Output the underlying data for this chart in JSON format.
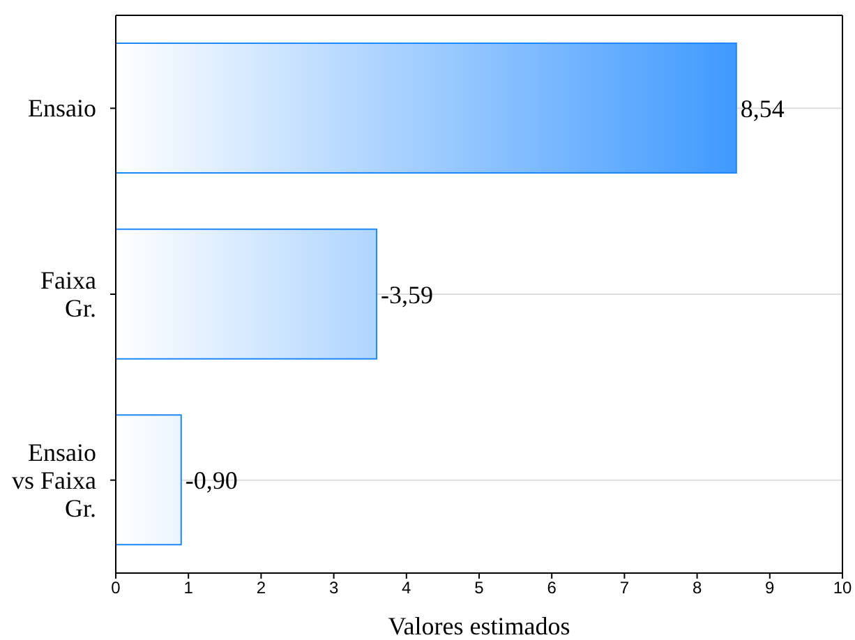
{
  "chart_data": {
    "type": "bar",
    "orientation": "horizontal",
    "xlabel": "Valores estimados",
    "categories": [
      "Ensaio",
      "Faixa Gr.",
      "Ensaio vs Faixa Gr."
    ],
    "values": [
      8.54,
      3.59,
      0.9
    ],
    "color": "#1e88ff",
    "annotations": [
      {
        "text": "8,54",
        "x": 8.54,
        "y": "Ensaio"
      },
      {
        "text": "-3,59",
        "x": 3.59,
        "y": "Faixa Gr."
      },
      {
        "text": "-0,90",
        "x": 0.9,
        "y": "Ensaio vs Faixa Gr."
      }
    ],
    "xlim": [
      0,
      10
    ],
    "xticks": [
      0,
      1,
      2,
      3,
      4,
      5,
      6,
      7,
      8,
      9,
      10
    ],
    "grid": "y"
  }
}
